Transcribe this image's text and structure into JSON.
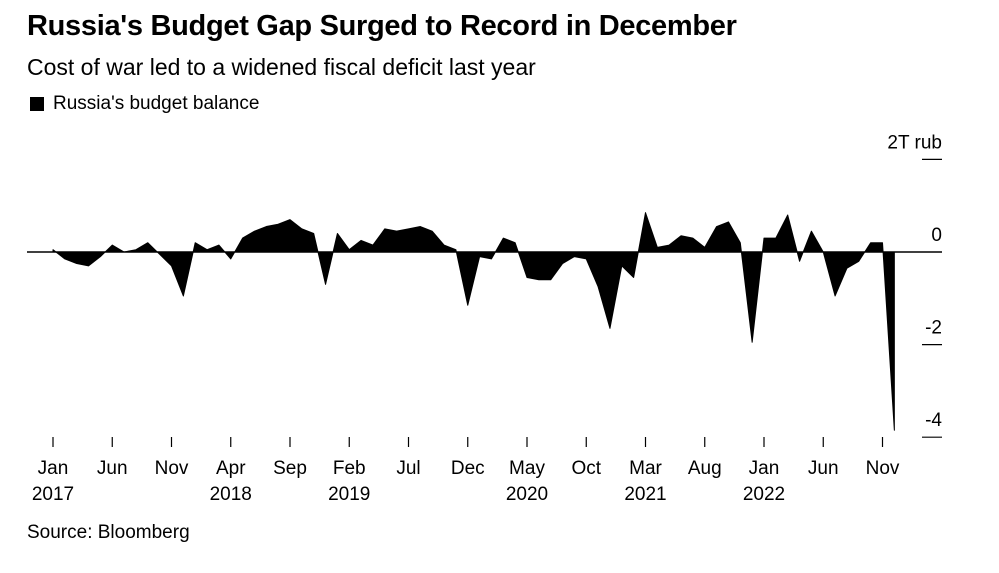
{
  "title": "Russia's Budget Gap Surged to Record in December",
  "subtitle": "Cost of war led to a widened fiscal deficit last year",
  "legend": "Russia's budget balance",
  "source": "Source: Bloomberg",
  "colors": {
    "series": "#000000",
    "axis": "#000000",
    "background": "#ffffff"
  },
  "chart_data": {
    "type": "area",
    "title": "Russia's Budget Gap Surged to Record in December",
    "ylabel": "2T rub",
    "ylim": [
      -4,
      2
    ],
    "yticks": [
      {
        "value": 2,
        "label": "2T rub"
      },
      {
        "value": 0,
        "label": "0"
      },
      {
        "value": -2,
        "label": "-2"
      },
      {
        "value": -4,
        "label": "-4"
      }
    ],
    "xticks": [
      {
        "month": "Jan",
        "year": "2017",
        "index": 0
      },
      {
        "month": "Jun",
        "year": "",
        "index": 5
      },
      {
        "month": "Nov",
        "year": "",
        "index": 10
      },
      {
        "month": "Apr",
        "year": "2018",
        "index": 15
      },
      {
        "month": "Sep",
        "year": "",
        "index": 20
      },
      {
        "month": "Feb",
        "year": "2019",
        "index": 25
      },
      {
        "month": "Jul",
        "year": "",
        "index": 30
      },
      {
        "month": "Dec",
        "year": "",
        "index": 35
      },
      {
        "month": "May",
        "year": "2020",
        "index": 40
      },
      {
        "month": "Oct",
        "year": "",
        "index": 45
      },
      {
        "month": "Mar",
        "year": "2021",
        "index": 50
      },
      {
        "month": "Aug",
        "year": "",
        "index": 55
      },
      {
        "month": "Jan",
        "year": "2022",
        "index": 60
      },
      {
        "month": "Jun",
        "year": "",
        "index": 65
      },
      {
        "month": "Nov",
        "year": "",
        "index": 70
      }
    ],
    "series": [
      {
        "name": "Russia's budget balance",
        "start": "Jan 2017",
        "values": [
          0.05,
          -0.15,
          -0.25,
          -0.3,
          -0.1,
          0.15,
          0.0,
          0.05,
          0.2,
          -0.05,
          -0.3,
          -0.95,
          0.2,
          0.05,
          0.15,
          -0.15,
          0.3,
          0.45,
          0.55,
          0.6,
          0.7,
          0.5,
          0.4,
          -0.7,
          0.4,
          0.05,
          0.25,
          0.15,
          0.5,
          0.45,
          0.5,
          0.55,
          0.45,
          0.15,
          0.05,
          -1.15,
          -0.1,
          -0.15,
          0.3,
          0.2,
          -0.55,
          -0.6,
          -0.6,
          -0.25,
          -0.1,
          -0.15,
          -0.75,
          -1.65,
          -0.3,
          -0.55,
          0.85,
          0.1,
          0.15,
          0.35,
          0.3,
          0.1,
          0.55,
          0.65,
          0.2,
          -1.95,
          0.3,
          0.3,
          0.8,
          -0.2,
          0.45,
          0.0,
          -0.95,
          -0.35,
          -0.2,
          0.2,
          0.2,
          -3.85
        ]
      }
    ]
  }
}
